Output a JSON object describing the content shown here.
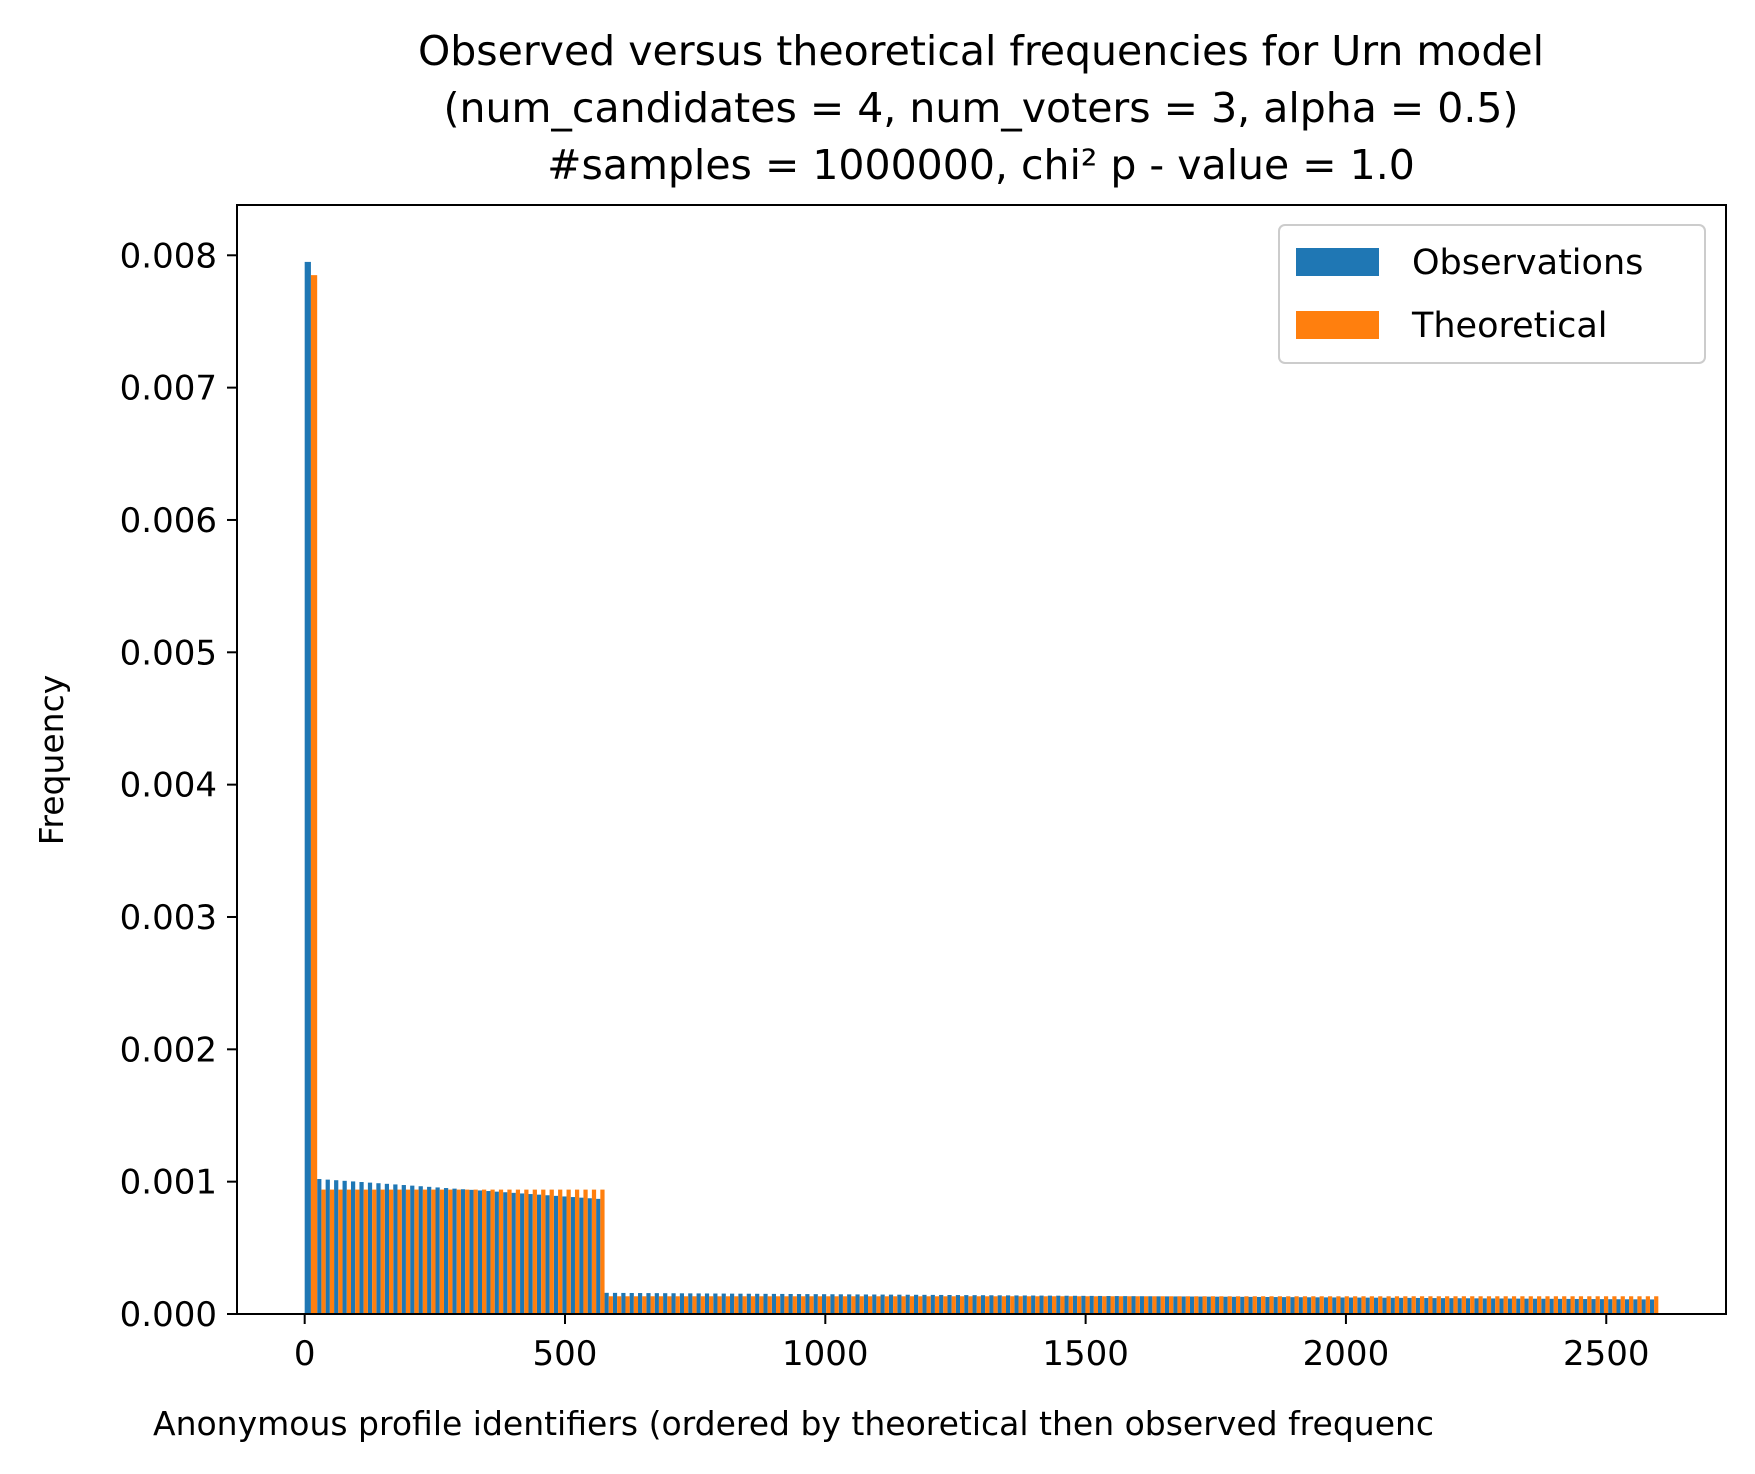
{
  "chart_data": {
    "type": "bar",
    "title": "Observed versus theoretical frequencies for Urn model\n(num_candidates = 4, num_voters = 3, alpha = 0.5)\n#samples = 1000000, chi² p - value = 1.0",
    "title_lines": [
      "Observed versus theoretical frequencies for Urn model",
      "(num_candidates = 4, num_voters = 3, alpha = 0.5)",
      "#samples = 1000000, chi² p - value = 1.0"
    ],
    "xlabel": "Anonymous profile identifiers (ordered by theoretical then observed frequenc",
    "ylabel": "Frequency",
    "xlim": [
      -130,
      2730
    ],
    "ylim": [
      0,
      0.00838
    ],
    "xticks": [
      0,
      500,
      1000,
      1500,
      2000,
      2500
    ],
    "yticks": [
      0.0,
      0.001,
      0.002,
      0.003,
      0.004,
      0.005,
      0.006,
      0.007,
      0.008
    ],
    "ytick_labels": [
      "0.000",
      "0.001",
      "0.002",
      "0.003",
      "0.004",
      "0.005",
      "0.006",
      "0.007",
      "0.008"
    ],
    "xtick_labels": [
      "0",
      "500",
      "1000",
      "1500",
      "2000",
      "2500"
    ],
    "legend": {
      "position": "top-right",
      "entries": [
        "Observations",
        "Theoretical"
      ]
    },
    "grid": false,
    "series": [
      {
        "name": "Observations",
        "color": "#1f77b4",
        "groups": [
          {
            "x_start": 0,
            "x_end": 24,
            "count": 24,
            "value_start": 0.00795,
            "value_end": 0.00785
          },
          {
            "x_start": 24,
            "x_end": 576,
            "count": 552,
            "value_start": 0.00102,
            "value_end": 0.00087
          },
          {
            "x_start": 576,
            "x_end": 2600,
            "count": 2024,
            "value_start": 0.00016,
            "value_end": 0.00011
          }
        ]
      },
      {
        "name": "Theoretical",
        "color": "#ff7f0e",
        "groups": [
          {
            "x_start": 0,
            "x_end": 24,
            "count": 24,
            "value": 0.00785
          },
          {
            "x_start": 24,
            "x_end": 576,
            "count": 552,
            "value": 0.00094
          },
          {
            "x_start": 576,
            "x_end": 2600,
            "count": 2024,
            "value": 0.000134
          }
        ]
      }
    ]
  }
}
